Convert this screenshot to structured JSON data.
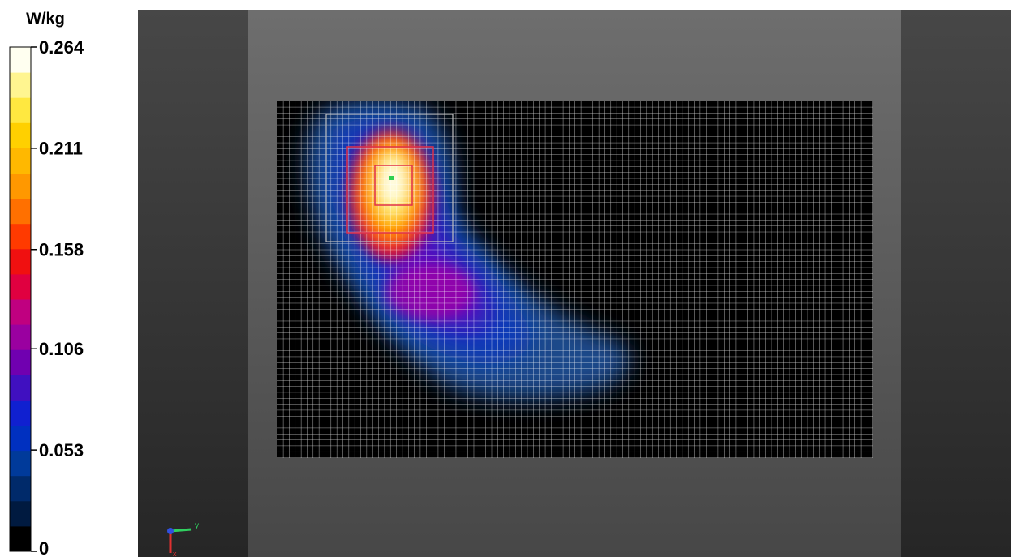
{
  "colorbar": {
    "unit": "W/kg",
    "ticks": [
      0,
      0.053,
      0.106,
      0.158,
      0.211,
      0.264
    ],
    "colors": [
      "#000000",
      "#001a40",
      "#002a6a",
      "#003a9a",
      "#0030c0",
      "#1020d0",
      "#4010c0",
      "#7000b0",
      "#9a00a0",
      "#c00080",
      "#e00040",
      "#f01010",
      "#ff3a00",
      "#ff7000",
      "#ff9800",
      "#ffb800",
      "#ffd000",
      "#ffe840",
      "#fff590",
      "#fffff0"
    ]
  },
  "triad": {
    "y": "y",
    "x": "x"
  }
}
